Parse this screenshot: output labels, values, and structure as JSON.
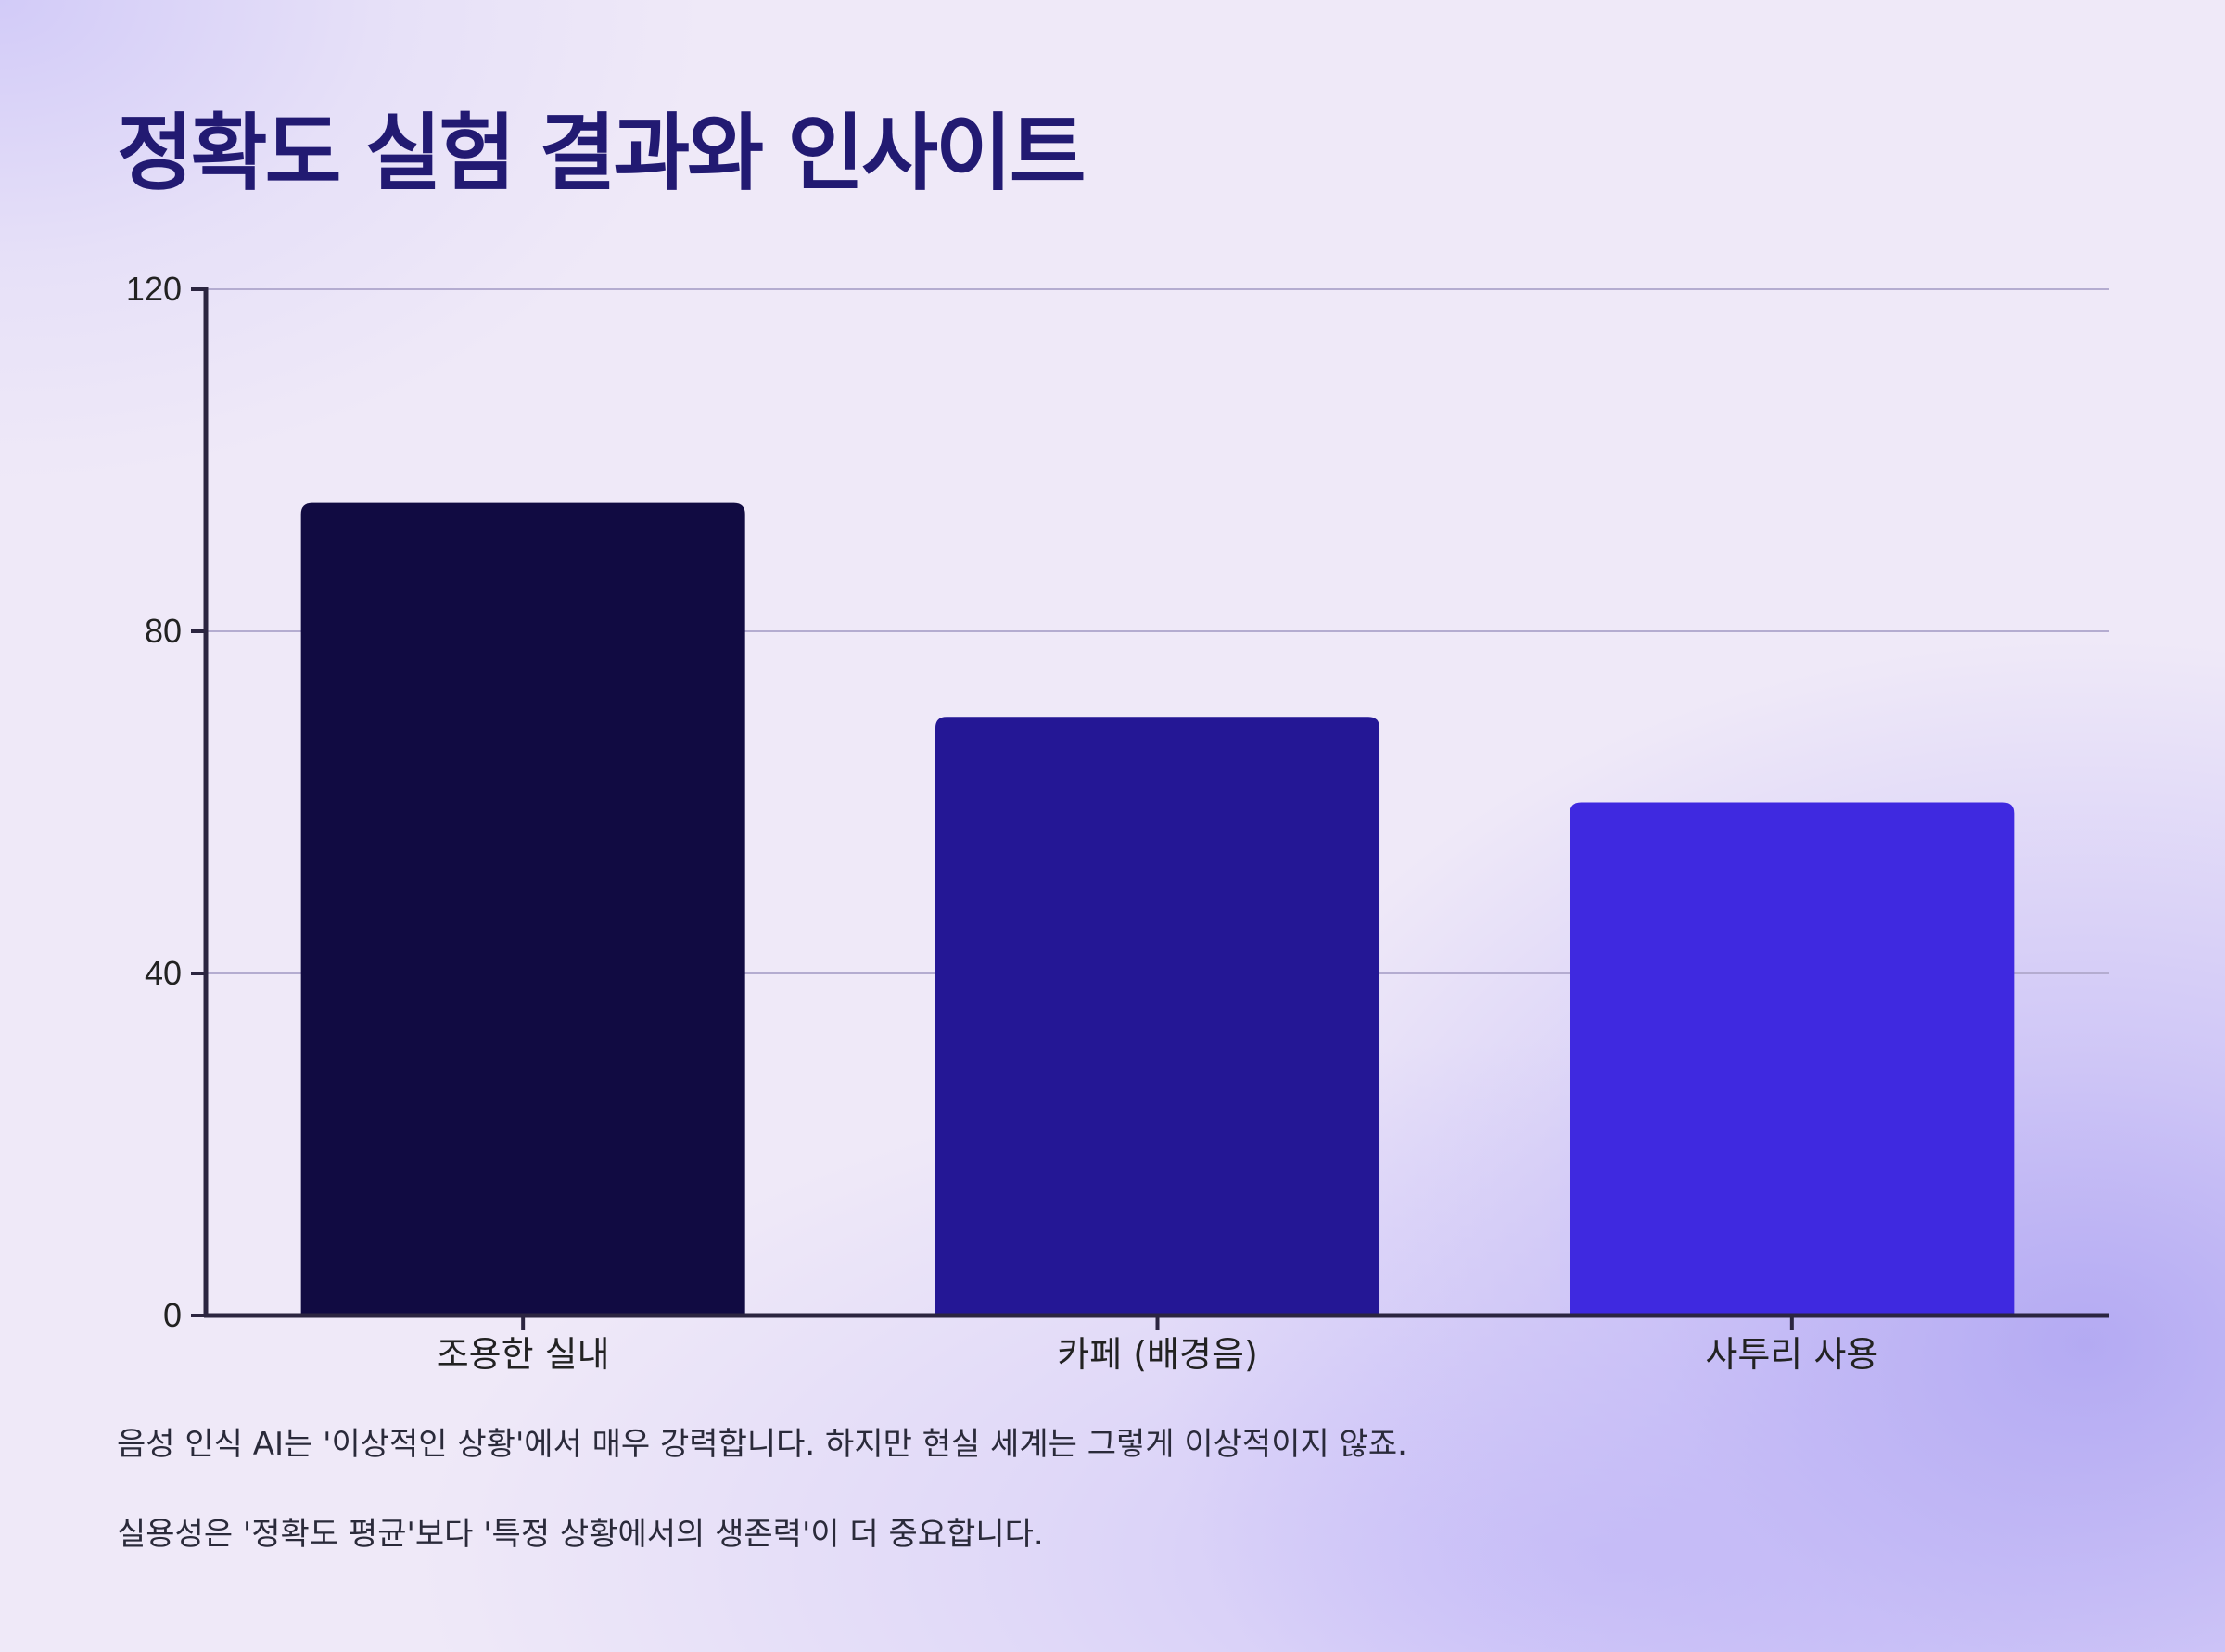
{
  "page": {
    "title": "정확도 실험 결과와 인사이트",
    "notes": [
      "음성 인식 AI는 '이상적인 상황'에서 매우 강력합니다. 하지만 현실 세계는 그렇게 이상적이지 않죠.",
      "실용성은 '정확도 평균'보다 '특정 상황에서의 생존력'이 더 중요합니다."
    ]
  },
  "chart_data": {
    "type": "bar",
    "categories": [
      "조용한 실내",
      "카페 (배경음)",
      "사투리 사용"
    ],
    "values": [
      95,
      70,
      60
    ],
    "colors": [
      "#110b42",
      "#241795",
      "#3f29e0"
    ],
    "ylim": [
      0,
      120
    ],
    "yticks": [
      0,
      40,
      80,
      120
    ],
    "grid": true,
    "xlabel": "",
    "ylabel": ""
  }
}
